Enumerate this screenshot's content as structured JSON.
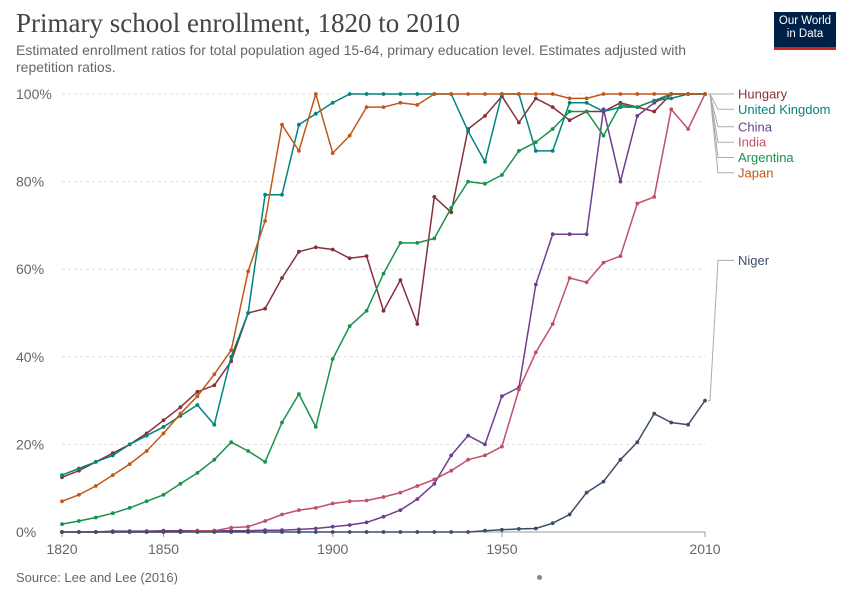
{
  "header": {
    "title": "Primary school enrollment, 1820 to 2010",
    "subtitle": "Estimated enrollment ratios for total population aged 15-64, primary education level. Estimates adjusted with repetition ratios.",
    "logo_line1": "Our World",
    "logo_line2": "in Data"
  },
  "footer": {
    "source": "Source: Lee and Lee (2016)"
  },
  "chart_data": {
    "type": "line",
    "title": "Primary school enrollment, 1820 to 2010",
    "xlabel": "",
    "ylabel": "",
    "xlim": [
      1820,
      2010
    ],
    "ylim": [
      0,
      100
    ],
    "grid": true,
    "legend": "right",
    "x_ticks": [
      {
        "value": 1820,
        "label": "1820"
      },
      {
        "value": 1850,
        "label": "1850"
      },
      {
        "value": 1900,
        "label": "1900"
      },
      {
        "value": 1950,
        "label": "1950"
      },
      {
        "value": 2010,
        "label": "2010"
      }
    ],
    "y_ticks": [
      {
        "value": 0,
        "label": "0%"
      },
      {
        "value": 20,
        "label": "20%"
      },
      {
        "value": 40,
        "label": "40%"
      },
      {
        "value": 60,
        "label": "60%"
      },
      {
        "value": 80,
        "label": "80%"
      },
      {
        "value": 100,
        "label": "100%"
      }
    ],
    "x": [
      1820,
      1825,
      1830,
      1835,
      1840,
      1845,
      1850,
      1855,
      1860,
      1865,
      1870,
      1875,
      1880,
      1885,
      1890,
      1895,
      1900,
      1905,
      1910,
      1915,
      1920,
      1925,
      1930,
      1935,
      1940,
      1945,
      1950,
      1955,
      1960,
      1965,
      1970,
      1975,
      1980,
      1985,
      1990,
      1995,
      2000,
      2005,
      2010
    ],
    "series": [
      {
        "name": "Hungary",
        "color": "#883039",
        "label_value": 100,
        "values": [
          12.5,
          14,
          16,
          18,
          20,
          22.5,
          25.5,
          28.5,
          32,
          33.5,
          39,
          50,
          51,
          58,
          64,
          65,
          64.5,
          62.5,
          63,
          50.5,
          57.5,
          47.5,
          76.5,
          73,
          92,
          95,
          99.5,
          93.5,
          99,
          97,
          94,
          96,
          96,
          98,
          97,
          96,
          100,
          100,
          100
        ]
      },
      {
        "name": "United Kingdom",
        "color": "#00847e",
        "label_value": 96.5,
        "values": [
          13,
          14.5,
          16,
          17.5,
          20,
          22,
          24,
          26.5,
          29,
          24.5,
          40,
          50,
          77,
          77,
          93,
          95.5,
          98,
          100,
          100,
          100,
          100,
          100,
          100,
          100,
          91.5,
          84.5,
          100,
          100,
          87,
          87,
          98,
          98,
          96,
          97,
          97,
          98.5,
          99,
          100,
          100
        ]
      },
      {
        "name": "China",
        "color": "#6d3e91",
        "label_value": 92.5,
        "values": [
          0,
          0,
          0,
          0.2,
          0.2,
          0.2,
          0.3,
          0.3,
          0.3,
          0.3,
          0.3,
          0.3,
          0.4,
          0.4,
          0.6,
          0.8,
          1.2,
          1.6,
          2.2,
          3.5,
          5,
          7.5,
          11,
          17.5,
          22,
          20,
          31,
          33,
          56.5,
          68,
          68,
          68,
          96.5,
          80,
          95,
          98,
          100,
          100,
          100
        ]
      },
      {
        "name": "India",
        "color": "#c15065",
        "label_value": 89,
        "values": [
          0,
          0,
          0,
          0,
          0,
          0,
          0,
          0,
          0.3,
          0.3,
          1,
          1.2,
          2.5,
          4,
          5,
          5.5,
          6.5,
          7,
          7.2,
          8,
          9,
          10.5,
          12,
          14,
          16.5,
          17.5,
          19.5,
          32.5,
          41,
          47.5,
          58,
          57,
          61.5,
          63,
          75,
          76.5,
          96.5,
          92,
          100
        ]
      },
      {
        "name": "Argentina",
        "color": "#18924e",
        "label_value": 85.5,
        "values": [
          1.8,
          2.5,
          3.3,
          4.3,
          5.5,
          7,
          8.5,
          11,
          13.5,
          16.5,
          20.5,
          18.5,
          16,
          25,
          31.5,
          24,
          39.5,
          47,
          50.5,
          59,
          66,
          66,
          67,
          74,
          80,
          79.5,
          81.5,
          87,
          89,
          92,
          96,
          96,
          90.5,
          97.5,
          97,
          98.5,
          100,
          100,
          100
        ]
      },
      {
        "name": "Japan",
        "color": "#c05917",
        "label_value": 82,
        "values": [
          7,
          8.5,
          10.5,
          13,
          15.5,
          18.5,
          22.5,
          27,
          31,
          36,
          41.5,
          59.5,
          71,
          93,
          87,
          100,
          86.5,
          90.5,
          97,
          97,
          98,
          97.5,
          100,
          100,
          100,
          100,
          100,
          100,
          100,
          100,
          99,
          99,
          100,
          100,
          100,
          100,
          100,
          100,
          100
        ]
      },
      {
        "name": "Niger",
        "color": "#3c4e66",
        "label_value": 62,
        "values": [
          0,
          0,
          0,
          0,
          0,
          0,
          0,
          0,
          0,
          0,
          0,
          0,
          0,
          0,
          0,
          0,
          0,
          0,
          0,
          0,
          0,
          0,
          0,
          0,
          0,
          0.3,
          0.5,
          0.7,
          0.8,
          2,
          4,
          9,
          11.5,
          16.5,
          20.5,
          27,
          25,
          24.5,
          30
        ]
      }
    ]
  }
}
